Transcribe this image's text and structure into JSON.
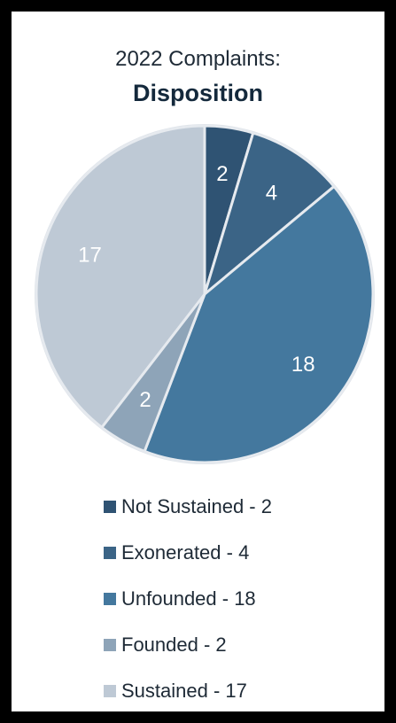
{
  "chart_data": {
    "type": "pie",
    "title": "2022 Complaints:",
    "subtitle": "Disposition",
    "categories": [
      "Not Sustained",
      "Exonerated",
      "Unfounded",
      "Founded",
      "Sustained"
    ],
    "values": [
      2,
      4,
      18,
      2,
      17
    ],
    "colors": [
      "#2f5373",
      "#3b6486",
      "#44789e",
      "#8ea4b8",
      "#bec9d5"
    ],
    "data_labels": [
      "2",
      "4",
      "18",
      "2",
      "17"
    ],
    "legend_labels": [
      "Not Sustained - 2",
      "Exonerated - 4",
      "Unfounded - 18",
      "Founded - 2",
      "Sustained - 17"
    ],
    "legend_position": "bottom"
  }
}
